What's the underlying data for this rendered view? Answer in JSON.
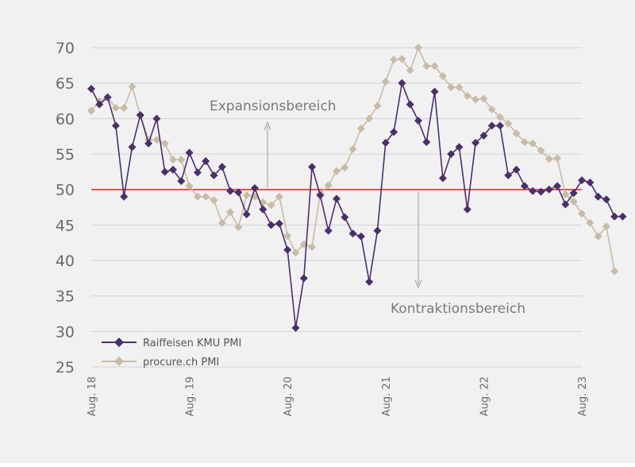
{
  "chart_data": {
    "type": "line",
    "title": "",
    "xlabel": "",
    "ylabel": "",
    "ylim": [
      25,
      70
    ],
    "yticks": [
      25,
      30,
      35,
      40,
      45,
      50,
      55,
      60,
      65,
      70
    ],
    "x_start": "2018-08",
    "x_end": "2023-08",
    "x_tick_labels": [
      "Aug. 18",
      "Aug. 19",
      "Aug. 20",
      "Aug. 21",
      "Aug. 22",
      "Aug. 23"
    ],
    "threshold": {
      "value": 50,
      "color": "#e03030"
    },
    "grid": "horizontal",
    "legend_position": "bottom-left",
    "annotations": {
      "expansion": "Expansionsbereich",
      "contraction": "Kontraktionsbereich"
    },
    "series": [
      {
        "name": "Raiffeisen KMU PMI",
        "color": "#4b2f6b",
        "marker": "diamond",
        "values": [
          64.2,
          62.0,
          63.0,
          59.0,
          49.0,
          56.0,
          60.5,
          56.5,
          60.0,
          52.5,
          52.8,
          51.2,
          55.2,
          52.4,
          54.0,
          52.0,
          53.2,
          49.8,
          49.6,
          46.5,
          50.2,
          47.2,
          45.0,
          45.2,
          41.5,
          30.5,
          37.5,
          53.2,
          49.2,
          44.2,
          48.7,
          46.1,
          43.8,
          43.4,
          37.0,
          44.2,
          56.6,
          58.1,
          65.0,
          62.0,
          59.7,
          56.7,
          63.8,
          51.6,
          55.0,
          56.0,
          47.2,
          56.6,
          57.6,
          59.0,
          59.0,
          52.0,
          52.8,
          50.5,
          49.8,
          49.7,
          50.0,
          50.5,
          47.9,
          49.5,
          51.3,
          51.0,
          49.0,
          48.6,
          46.2,
          46.2
        ]
      },
      {
        "name": "procure.ch PMI",
        "color": "#c9bca6",
        "marker": "diamond",
        "values": [
          61.1,
          62.5,
          63.0,
          61.5,
          61.5,
          64.5,
          60.4,
          57.0,
          57.0,
          56.5,
          54.2,
          54.2,
          50.5,
          49.0,
          49.0,
          48.5,
          45.3,
          46.8,
          44.7,
          49.2,
          49.0,
          48.2,
          47.8,
          49.0,
          43.5,
          41.1,
          42.3,
          41.9,
          49.4,
          50.6,
          52.6,
          53.1,
          55.7,
          58.6,
          60.0,
          61.8,
          65.2,
          68.3,
          68.4,
          66.8,
          70.0,
          67.4,
          67.4,
          66.0,
          64.4,
          64.4,
          63.2,
          62.7,
          62.8,
          61.3,
          60.2,
          59.3,
          57.9,
          56.7,
          56.5,
          55.5,
          54.3,
          54.4,
          49.3,
          48.3,
          46.6,
          45.3,
          43.4,
          44.8,
          38.5
        ]
      }
    ]
  }
}
